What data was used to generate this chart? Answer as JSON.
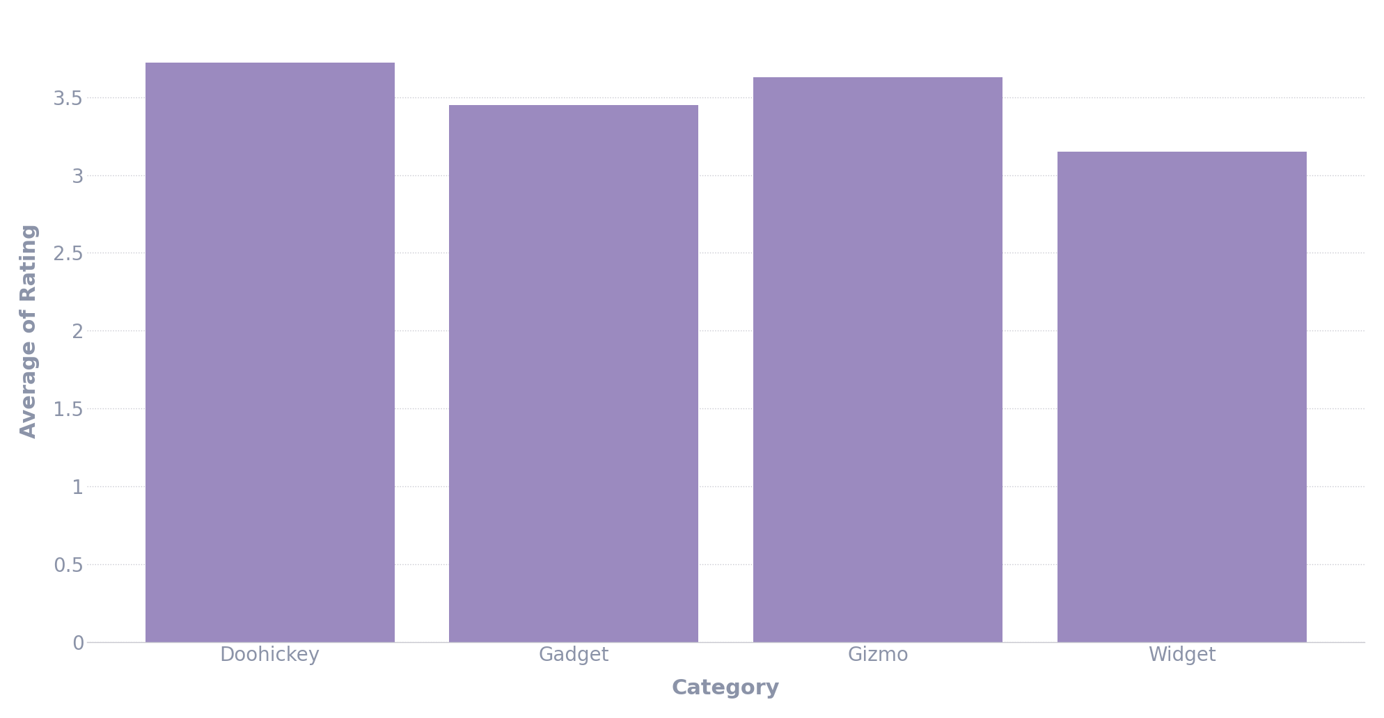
{
  "categories": [
    "Doohickey",
    "Gadget",
    "Gizmo",
    "Widget"
  ],
  "values": [
    3.72,
    3.45,
    3.63,
    3.15
  ],
  "bar_color": "#9b8abf",
  "bar_width": 0.82,
  "xlabel": "Category",
  "ylabel": "Average of Rating",
  "ylim": [
    0,
    4.0
  ],
  "yticks": [
    0,
    0.5,
    1.0,
    1.5,
    2.0,
    2.5,
    3.0,
    3.5
  ],
  "grid_color": "#c8c8d0",
  "grid_linestyle": "dotted",
  "background_color": "#ffffff",
  "axis_label_color": "#8b93a8",
  "tick_label_color": "#8b93a8",
  "xlabel_fontsize": 22,
  "ylabel_fontsize": 22,
  "tick_fontsize": 20,
  "label_fontweight": "bold"
}
